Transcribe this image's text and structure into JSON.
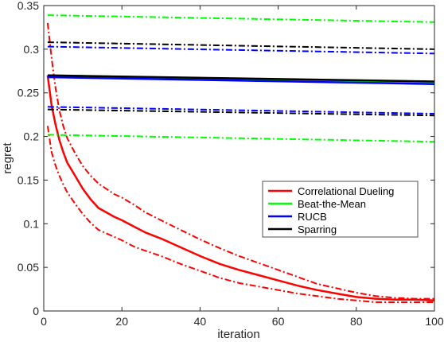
{
  "chart_data": {
    "type": "line",
    "xlabel": "iteration",
    "ylabel": "regret",
    "xlim": [
      0,
      100
    ],
    "ylim": [
      0,
      0.35
    ],
    "xticks": [
      0,
      20,
      40,
      60,
      80,
      100
    ],
    "yticks": [
      0,
      0.05,
      0.1,
      0.15,
      0.2,
      0.25,
      0.3,
      0.35
    ],
    "xtick_labels": [
      "0",
      "20",
      "40",
      "60",
      "80",
      "100"
    ],
    "ytick_labels": [
      "0",
      "0.05",
      "0.1",
      "0.15",
      "0.2",
      "0.25",
      "0.3",
      "0.35"
    ],
    "legend_placement": "center-right",
    "series": [
      {
        "name": "Correlational Dueling",
        "color": "#ff0000",
        "x": [
          1,
          2,
          3,
          4,
          5,
          6,
          8,
          10,
          12,
          14,
          16,
          18,
          20,
          23,
          26,
          30,
          35,
          40,
          45,
          50,
          55,
          60,
          65,
          70,
          75,
          80,
          85,
          90,
          95,
          100
        ],
        "mean": [
          0.27,
          0.236,
          0.214,
          0.196,
          0.182,
          0.17,
          0.155,
          0.14,
          0.128,
          0.118,
          0.113,
          0.108,
          0.104,
          0.097,
          0.09,
          0.083,
          0.073,
          0.063,
          0.054,
          0.047,
          0.041,
          0.035,
          0.029,
          0.024,
          0.02,
          0.016,
          0.014,
          0.013,
          0.013,
          0.012
        ],
        "upper": [
          0.33,
          0.29,
          0.256,
          0.23,
          0.212,
          0.198,
          0.181,
          0.166,
          0.155,
          0.146,
          0.14,
          0.134,
          0.13,
          0.122,
          0.113,
          0.104,
          0.093,
          0.082,
          0.072,
          0.063,
          0.055,
          0.047,
          0.039,
          0.031,
          0.026,
          0.021,
          0.017,
          0.015,
          0.014,
          0.014
        ],
        "lower": [
          0.212,
          0.182,
          0.167,
          0.155,
          0.145,
          0.136,
          0.123,
          0.111,
          0.101,
          0.093,
          0.089,
          0.085,
          0.081,
          0.074,
          0.069,
          0.063,
          0.054,
          0.046,
          0.038,
          0.032,
          0.028,
          0.024,
          0.02,
          0.017,
          0.014,
          0.012,
          0.01,
          0.01,
          0.01,
          0.01
        ]
      },
      {
        "name": "Beat-the-Mean",
        "color": "#00ff00",
        "x": [
          1,
          100
        ],
        "mean": [
          0.27,
          0.262
        ],
        "upper": [
          0.339,
          0.331
        ],
        "lower": [
          0.202,
          0.194
        ]
      },
      {
        "name": "RUCB",
        "color": "#0000ff",
        "x": [
          1,
          100
        ],
        "mean": [
          0.268,
          0.26
        ],
        "upper": [
          0.303,
          0.295
        ],
        "lower": [
          0.234,
          0.226
        ]
      },
      {
        "name": "Sparring",
        "color": "#000000",
        "x": [
          1,
          100
        ],
        "mean": [
          0.27,
          0.263
        ],
        "upper": [
          0.308,
          0.3
        ],
        "lower": [
          0.231,
          0.224
        ]
      }
    ]
  }
}
